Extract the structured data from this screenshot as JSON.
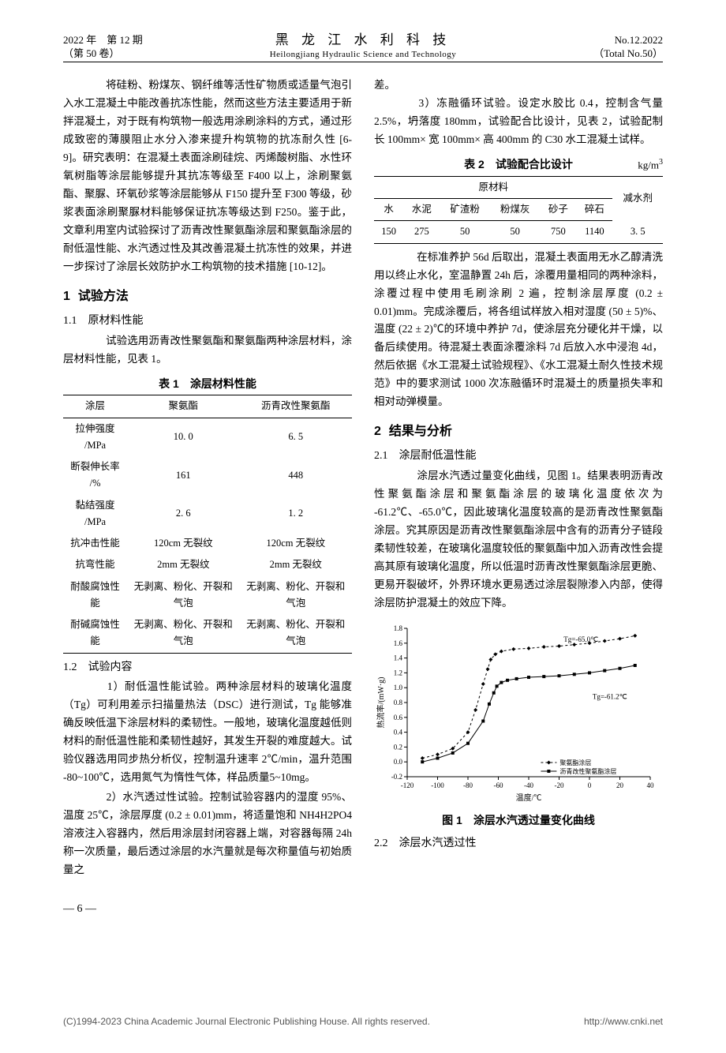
{
  "header": {
    "left_line1": "2022 年　第 12 期",
    "left_line2": "（第 50 卷）",
    "center_cn": "黑 龙 江 水 利 科 技",
    "center_en": "Heilongjiang Hydraulic Science and Technology",
    "right_line1": "No.12.2022",
    "right_line2": "（Total No.50）"
  },
  "left_col": {
    "intro": "　　将硅粉、粉煤灰、钢纤维等活性矿物质或适量气泡引入水工混凝土中能改善抗冻性能，然而这些方法主要适用于新拌混凝土，对于既有构筑物一般选用涂刷涂料的方式，通过形成致密的薄膜阻止水分入渗来提升构筑物的抗冻耐久性 [6-9]。研究表明：在混凝土表面涂刷硅烷、丙烯酸树脂、水性环氧树脂等涂层能够提升其抗冻等级至 F400 以上，涂刷聚氨酯、聚脲、环氧砂浆等涂层能够从 F150 提升至 F300 等级，砂浆表面涂刷聚脲材料能够保证抗冻等级达到 F250。鉴于此，文章利用室内试验探讨了沥青改性聚氨酯涂层和聚氨酯涂层的耐低温性能、水汽透过性及其改善混凝土抗冻性的效果，并进一步探讨了涂层长效防护水工构筑物的技术措施 [10-12]。",
    "sec1": "试验方法",
    "sec1_num": "1",
    "sub11": "1.1　原材料性能",
    "p11": "　　试验选用沥青改性聚氨酯和聚氨酯两种涂层材料，涂层材料性能，见表 1。",
    "table1_caption": "表 1　涂层材料性能",
    "table1": {
      "headers": [
        "涂层",
        "聚氨酯",
        "沥青改性聚氨酯"
      ],
      "rows": [
        [
          "拉伸强度 /MPa",
          "10. 0",
          "6. 5"
        ],
        [
          "断裂伸长率 /%",
          "161",
          "448"
        ],
        [
          "黏结强度 /MPa",
          "2. 6",
          "1. 2"
        ],
        [
          "抗冲击性能",
          "120cm 无裂纹",
          "120cm 无裂纹"
        ],
        [
          "抗弯性能",
          "2mm 无裂纹",
          "2mm 无裂纹"
        ],
        [
          "耐酸腐蚀性能",
          "无剥离、粉化、开裂和气泡",
          "无剥离、粉化、开裂和气泡"
        ],
        [
          "耐碱腐蚀性能",
          "无剥离、粉化、开裂和气泡",
          "无剥离、粉化、开裂和气泡"
        ]
      ]
    },
    "sub12": "1.2　试验内容",
    "p12a": "　　1）耐低温性能试验。两种涂层材料的玻璃化温度（Tg）可利用差示扫描量热法（DSC）进行测试，Tg 能够准确反映低温下涂层材料的柔韧性。一般地，玻璃化温度越低则材料的耐低温性能和柔韧性越好，其发生开裂的难度越大。试验仪器选用同步热分析仪，控制温升速率 2℃/min，温升范围 -80~100℃，选用氮气为惰性气体，样品质量5~10mg。",
    "p12b": "　　2）水汽透过性试验。控制试验容器内的湿度 95%、温度 25℃，涂层厚度 (0.2 ± 0.01)mm，将适量饱和 NH4H2PO4 溶液注入容器内，然后用涂层封闭容器上端，对容器每隔 24h 称一次质量，最后透过涂层的水汽量就是每次称量值与初始质量之"
  },
  "right_col": {
    "cont": "差。",
    "p3": "　　3）冻融循环试验。设定水胶比 0.4，控制含气量 2.5%，坍落度 180mm，试验配合比设计，见表 2，试验配制长 100mm× 宽 100mm× 高 400mm 的 C30 水工混凝土试样。",
    "table2_caption": "表 2　试验配合比设计",
    "table2_unit": "kg/m",
    "table2_unit_sup": "3",
    "table2": {
      "group_header": "原材料",
      "last_header": "减水剂",
      "sub_headers": [
        "水",
        "水泥",
        "矿渣粉",
        "粉煤灰",
        "砂子",
        "碎石"
      ],
      "row": [
        "150",
        "275",
        "50",
        "50",
        "750",
        "1140",
        "3. 5"
      ]
    },
    "p_after_t2": "　　在标准养护 56d 后取出，混凝土表面用无水乙醇清洗用以终止水化，室温静置 24h 后，涂覆用量相同的两种涂料，涂覆过程中使用毛刷涂刷 2 遍，控制涂层厚度 (0.2 ± 0.01)mm。完成涂覆后，将各组试样放入相对湿度 (50 ± 5)%、温度 (22 ± 2)℃的环境中养护 7d，使涂层充分硬化并干燥，以备后续使用。待混凝土表面涂覆涂料 7d 后放入水中浸泡 4d，然后依据《水工混凝土试验规程》、《水工混凝土耐久性技术规范》中的要求测试 1000 次冻融循环时混凝土的质量损失率和相对动弹模量。",
    "sec2_num": "2",
    "sec2": "结果与分析",
    "sub21": "2.1　涂层耐低温性能",
    "p21": "　　涂层水汽透过量变化曲线，见图 1。结果表明沥青改性聚氨酯涂层和聚氨酯涂层的玻璃化温度依次为 -61.2℃、-65.0℃，因此玻璃化温度较高的是沥青改性聚氨酯涂层。究其原因是沥青改性聚氨酯涂层中含有的沥青分子链段柔韧性较差，在玻璃化温度较低的聚氨酯中加入沥青改性会提高其原有玻璃化温度，所以低温时沥青改性聚氨酯涂层更脆、更易开裂破坏，外界环境水更易透过涂层裂隙渗入内部，使得涂层防护混凝土的效应下降。",
    "fig1_caption": "图 1　涂层水汽透过量变化曲线",
    "sub22": "2.2　涂层水汽透过性",
    "fig1": {
      "type": "line",
      "xlabel": "温度/℃",
      "ylabel": "热流率/(mW·g)",
      "xlim": [
        -120,
        40
      ],
      "xtick_step": 20,
      "ylim": [
        -0.2,
        1.8
      ],
      "ytick_step": 0.2,
      "series": [
        {
          "name": "聚氨酯涂层",
          "marker": "diamond",
          "dash": "3,3",
          "color": "#000000",
          "annotation": "Tg=-65.0℃",
          "annotation_x": -17,
          "annotation_y": 1.62,
          "x": [
            -110,
            -100,
            -90,
            -80,
            -75,
            -70,
            -67,
            -65,
            -62,
            -58,
            -50,
            -40,
            -30,
            -20,
            -10,
            0,
            10,
            20,
            30
          ],
          "y": [
            0.05,
            0.1,
            0.18,
            0.4,
            0.7,
            1.05,
            1.25,
            1.38,
            1.45,
            1.49,
            1.52,
            1.53,
            1.55,
            1.56,
            1.58,
            1.6,
            1.63,
            1.66,
            1.7
          ]
        },
        {
          "name": "沥青改性聚氨酯涂层",
          "marker": "square",
          "dash": "0",
          "color": "#000000",
          "annotation": "Tg=-61.2℃",
          "annotation_x": 2,
          "annotation_y": 0.85,
          "x": [
            -110,
            -100,
            -90,
            -80,
            -70,
            -66,
            -63,
            -61,
            -58,
            -54,
            -48,
            -40,
            -30,
            -20,
            -10,
            0,
            10,
            20,
            30
          ],
          "y": [
            0.0,
            0.05,
            0.12,
            0.25,
            0.55,
            0.78,
            0.93,
            1.02,
            1.07,
            1.1,
            1.12,
            1.14,
            1.15,
            1.16,
            1.18,
            1.2,
            1.23,
            1.26,
            1.3
          ]
        }
      ],
      "grid_color": "#ffffff",
      "bg": "#ffffff",
      "axis_color": "#000000",
      "font_size": 9
    }
  },
  "page_num": "— 6 —",
  "footer": {
    "left": "(C)1994-2023 China Academic Journal Electronic Publishing House. All rights reserved.",
    "right": "http://www.cnki.net"
  }
}
